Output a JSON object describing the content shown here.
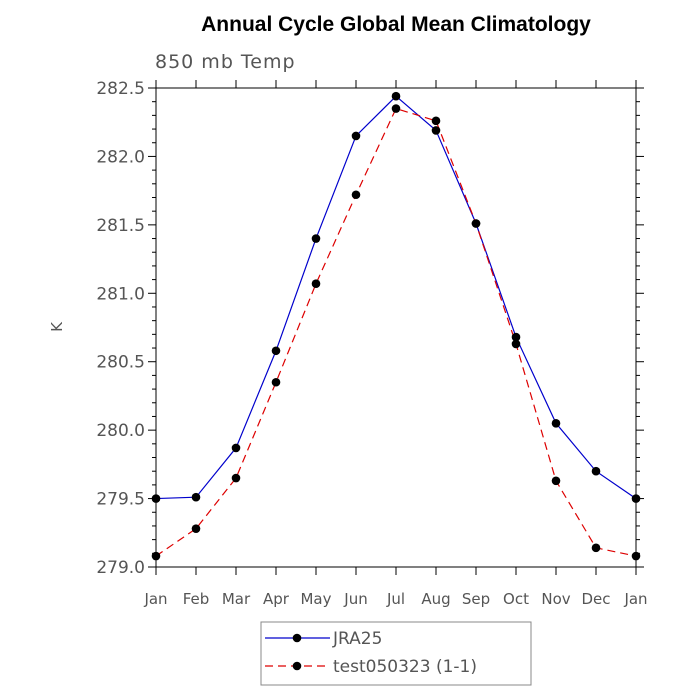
{
  "chart_data": {
    "type": "line",
    "title": "Annual Cycle Global Mean Climatology",
    "subtitle": "850 mb Temp",
    "xlabel": "",
    "ylabel": "K",
    "categories": [
      "Jan",
      "Feb",
      "Mar",
      "Apr",
      "May",
      "Jun",
      "Jul",
      "Aug",
      "Sep",
      "Oct",
      "Nov",
      "Dec",
      "Jan"
    ],
    "ylim": [
      279.0,
      282.5
    ],
    "yticks": [
      279.0,
      279.5,
      280.0,
      280.5,
      281.0,
      281.5,
      282.0,
      282.5
    ],
    "ytick_labels": [
      "279.0",
      "279.5",
      "280.0",
      "280.5",
      "281.0",
      "281.5",
      "282.0",
      "282.5"
    ],
    "grid": false,
    "legend_position": "bottom-center",
    "series": [
      {
        "name": "JRA25",
        "color": "#0000cc",
        "line_style": "solid",
        "marker": "circle",
        "values": [
          279.5,
          279.51,
          279.87,
          280.58,
          281.4,
          282.15,
          282.44,
          282.19,
          281.51,
          280.68,
          280.05,
          279.7,
          279.5
        ]
      },
      {
        "name": "test050323 (1-1)",
        "color": "#dd0000",
        "line_style": "dashed",
        "marker": "circle",
        "values": [
          279.08,
          279.28,
          279.65,
          280.35,
          281.07,
          281.72,
          282.35,
          282.26,
          281.51,
          280.63,
          279.63,
          279.14,
          279.08
        ]
      }
    ]
  }
}
